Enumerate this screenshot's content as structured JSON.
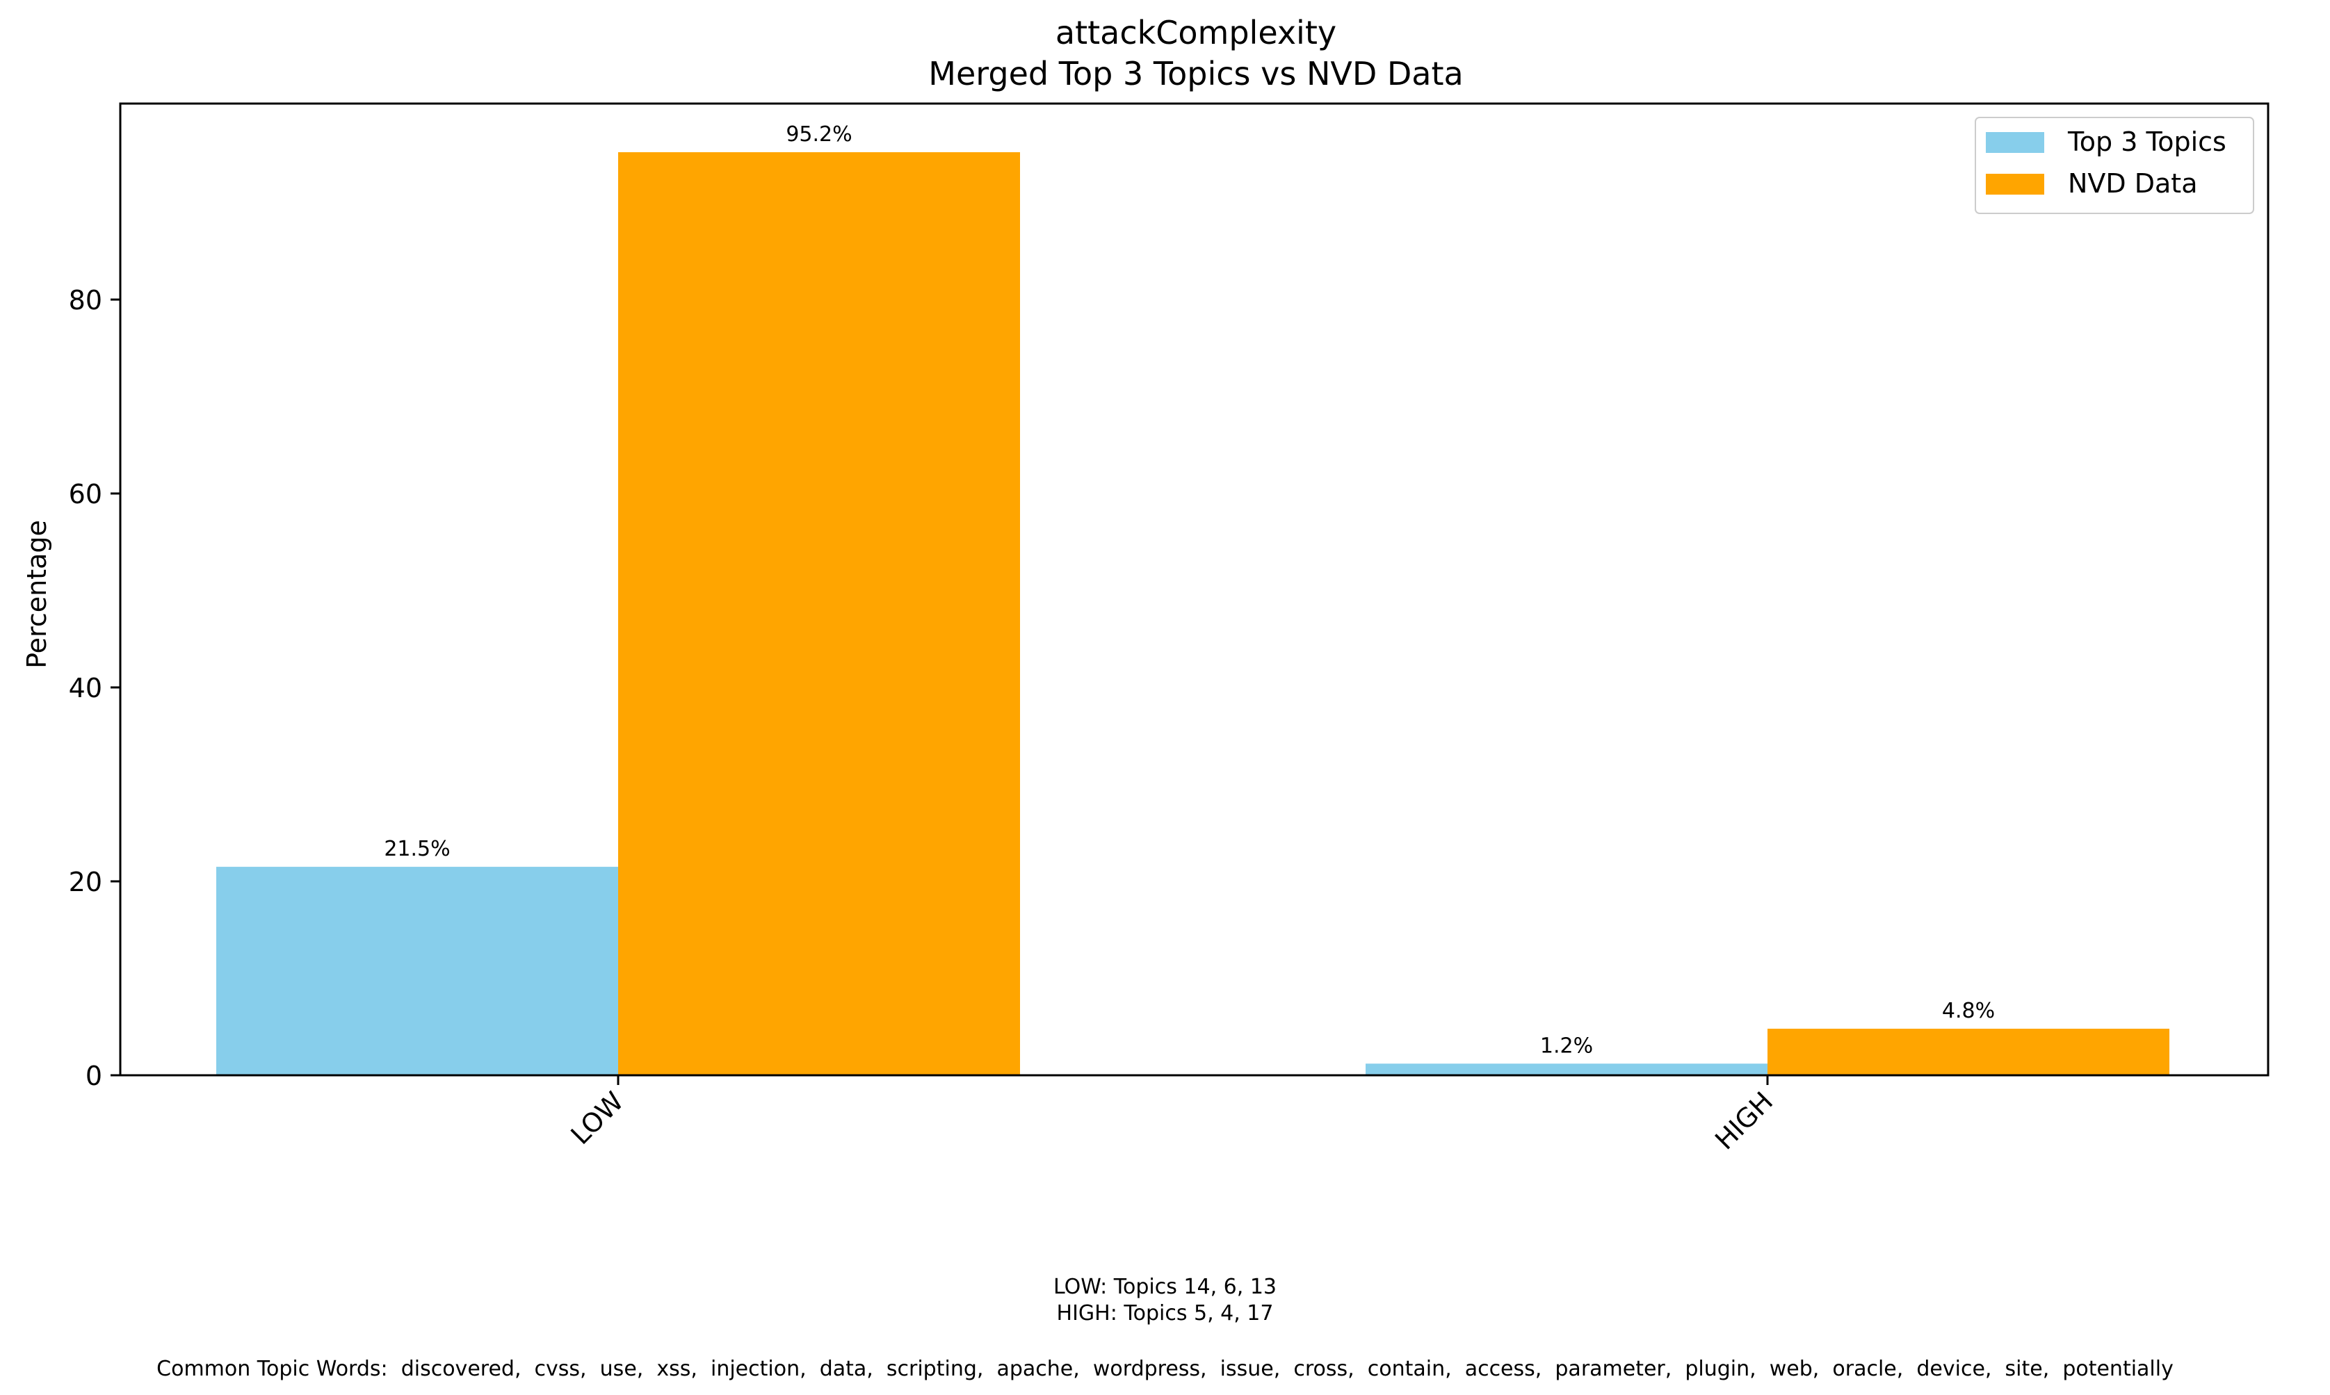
{
  "chart_data": {
    "type": "bar",
    "title": "attackComplexity",
    "subtitle": "Merged Top 3 Topics vs NVD Data",
    "xlabel": "",
    "ylabel": "Percentage",
    "categories": [
      "LOW",
      "HIGH"
    ],
    "series": [
      {
        "name": "Top 3 Topics",
        "color": "#87ceeb",
        "values": [
          21.5,
          1.2
        ],
        "labels": [
          "21.5%",
          "1.2%"
        ]
      },
      {
        "name": "NVD Data",
        "color": "#ffa500",
        "values": [
          95.2,
          4.8
        ],
        "labels": [
          "95.2%",
          "4.8%"
        ]
      }
    ],
    "ylim": [
      0,
      100
    ],
    "yticks": [
      0,
      20,
      40,
      60,
      80
    ],
    "grid": false,
    "legend": "top-right"
  },
  "notes": {
    "topic_mapping": [
      "LOW: Topics 14, 6, 13",
      "HIGH: Topics 5, 4, 17"
    ],
    "common_words": "Common Topic Words:  discovered,  cvss,  use,  xss,  injection,  data,  scripting,  apache,  wordpress,  issue,  cross,  contain,  access,  parameter,  plugin,  web,  oracle,  device,  site,  potentially"
  }
}
